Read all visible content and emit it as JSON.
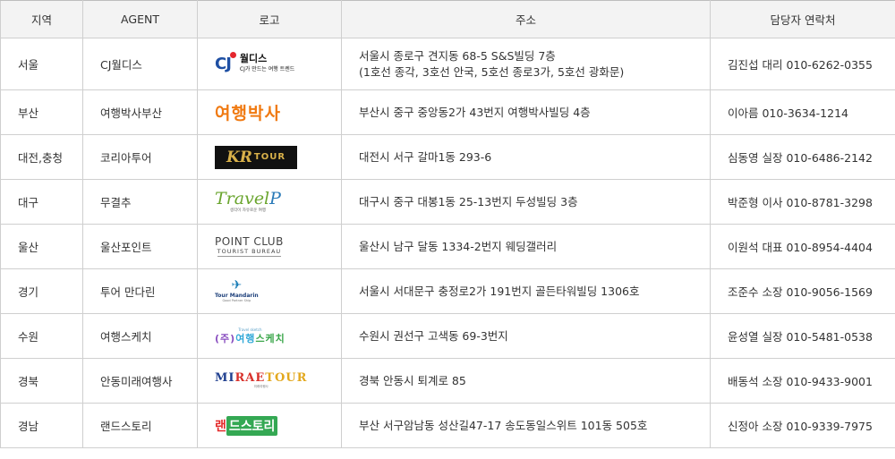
{
  "headers": [
    "지역",
    "AGENT",
    "로고",
    "주소",
    "담당자 연락처"
  ],
  "rows": [
    {
      "region": "서울",
      "agent": "CJ월디스",
      "logo_icon": "cj-worldis-logo",
      "logo_text": [
        "CJ",
        "월디스",
        "CJ가 만드는 여행 트렌드"
      ],
      "address": [
        "서울시 종로구 견지동 68-5 S&S빌딩 7층",
        "(1호선 종각, 3호선 안국, 5호선 종로3가, 5호선 광화문)"
      ],
      "contact": "김진섭 대리  010-6262-0355"
    },
    {
      "region": "부산",
      "agent": "여행박사부산",
      "logo_icon": "tour-doctor-logo",
      "logo_text": [
        "여행박사"
      ],
      "address": [
        "부산시 중구 중앙동2가 43번지 여행박사빌딩 4층"
      ],
      "contact": "이아름 010-3634-1214"
    },
    {
      "region": "대전,충청",
      "agent": "코리아투어",
      "logo_icon": "kr-tour-logo",
      "logo_text": [
        "KR",
        "TOUR"
      ],
      "address": [
        "대전시 서구 갈마1동 293-6"
      ],
      "contact": "심동영 실장 010-6486-2142"
    },
    {
      "region": "대구",
      "agent": "무결추",
      "logo_icon": "travel-p-logo",
      "logo_text": [
        "Travel",
        "P",
        "생각이 자유로운 여행"
      ],
      "address": [
        "대구시 중구 대봉1동 25-13번지 두성빌딩 3층"
      ],
      "contact": "박준형 이사 010-8781-3298"
    },
    {
      "region": "울산",
      "agent": "울산포인트",
      "logo_icon": "point-club-logo",
      "logo_text": [
        "POINT CLUB",
        "TOURIST BUREAU"
      ],
      "address": [
        "울산시 남구 달동 1334-2번지 웨딩갤러리"
      ],
      "contact": "이원석 대표 010-8954-4404"
    },
    {
      "region": "경기",
      "agent": "투어 만다린",
      "logo_icon": "tour-mandarin-logo",
      "logo_text": [
        "Tour Mandarin",
        "Good Partner Ship"
      ],
      "address": [
        "서울시 서대문구 충정로2가 191번지 골든타워빌딩 1306호"
      ],
      "contact": "조준수 소장 010-9056-1569"
    },
    {
      "region": "수원",
      "agent": "여행스케치",
      "logo_icon": "travel-sketch-logo",
      "logo_text": [
        "Travel sketch",
        "(주)",
        "여행",
        "스케치"
      ],
      "address": [
        "수원시 권선구 고색동 69-3번지"
      ],
      "contact": "윤성열 실장 010-5481-0538"
    },
    {
      "region": "경북",
      "agent": "안동미래여행사",
      "logo_icon": "mirae-tour-logo",
      "logo_text": [
        "MI",
        "RAE",
        "TOUR",
        "미래여행사"
      ],
      "address": [
        "경북 안동시 퇴계로 85"
      ],
      "contact": "배동석 소장 010-9433-9001"
    },
    {
      "region": "경남",
      "agent": "랜드스토리",
      "logo_icon": "land-story-logo",
      "logo_text": [
        "랜",
        "드스토리"
      ],
      "address": [
        "부산 서구암남동 성산길47-17 송도동일스위트 101동 505호"
      ],
      "contact": "신정아 소장 010-9339-7975"
    }
  ]
}
